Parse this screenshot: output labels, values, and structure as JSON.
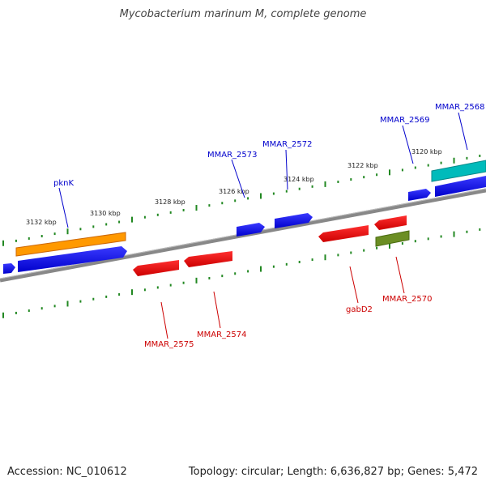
{
  "title": "Mycobacterium marinum M, complete genome",
  "footer": {
    "accession": "Accession: NC_010612",
    "topology": "Topology: circular; Length: 6,636,827 bp; Genes: 5,472"
  },
  "colors": {
    "forward_strand": "#0000ee",
    "reverse_strand": "#ee0000",
    "forward_label": "#0000cc",
    "reverse_label": "#cc0000",
    "highlight_orange": "#ff9900",
    "highlight_cyan": "#00bbbb",
    "highlight_olive": "#6b8e23",
    "backbone": "#888888",
    "ticks": "#228822"
  },
  "scale_labels": [
    "3132 kbp",
    "3130 kbp",
    "3128 kbp",
    "3126 kbp",
    "3124 kbp",
    "3122 kbp",
    "3120 kbp"
  ],
  "genes": {
    "pknK": "pknK",
    "mmar2573": "MMAR_2573",
    "mmar2572": "MMAR_2572",
    "mmar2569": "MMAR_2569",
    "mmar2568": "MMAR_2568",
    "mmar2575": "MMAR_2575",
    "mmar2574": "MMAR_2574",
    "gabD2": "gabD2",
    "mmar2570": "MMAR_2570"
  }
}
